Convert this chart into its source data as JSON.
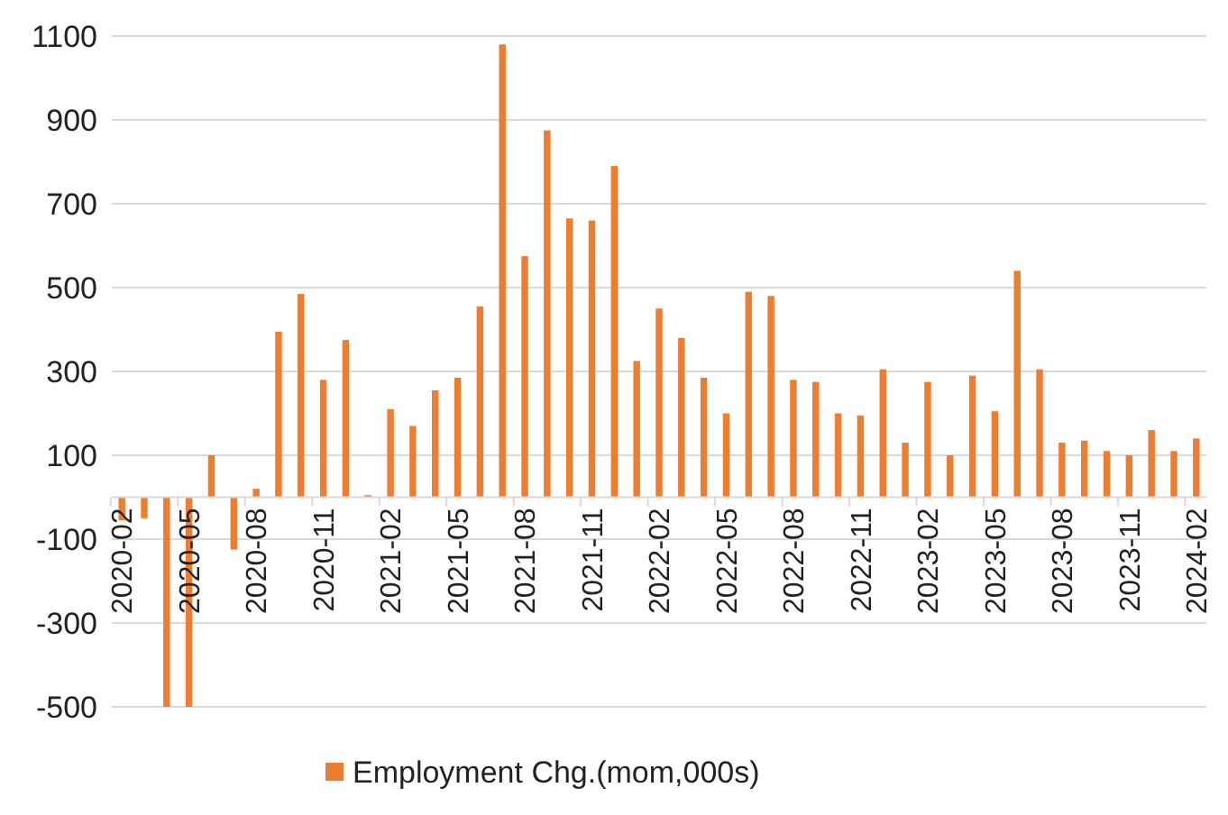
{
  "chart_data": {
    "type": "bar",
    "categories": [
      "2020-02",
      null,
      null,
      "2020-05",
      null,
      null,
      "2020-08",
      null,
      null,
      "2020-11",
      null,
      null,
      "2021-02",
      null,
      null,
      "2021-05",
      null,
      null,
      "2021-08",
      null,
      null,
      "2021-11",
      null,
      null,
      "2022-02",
      null,
      null,
      "2022-05",
      null,
      null,
      "2022-08",
      null,
      null,
      "2022-11",
      null,
      null,
      "2023-02",
      null,
      null,
      "2023-05",
      null,
      null,
      "2023-08",
      null,
      null,
      "2023-11",
      null,
      null,
      "2024-02"
    ],
    "series": [
      {
        "name": "Employment Chg.(mom,000s)",
        "color": "#ed7d31",
        "values": [
          -55,
          -50,
          -500,
          -500,
          100,
          -125,
          20,
          395,
          485,
          280,
          375,
          5,
          210,
          170,
          255,
          285,
          455,
          1080,
          575,
          875,
          665,
          660,
          790,
          325,
          450,
          380,
          285,
          200,
          490,
          480,
          280,
          275,
          200,
          195,
          305,
          130,
          275,
          100,
          290,
          205,
          540,
          305,
          130,
          135,
          110,
          100,
          160,
          110,
          140
        ]
      }
    ],
    "ylim": [
      -500,
      1100
    ],
    "yticks": [
      -500,
      -300,
      -100,
      100,
      300,
      500,
      700,
      900,
      1100
    ],
    "grid": "y",
    "legend": "bottom"
  }
}
